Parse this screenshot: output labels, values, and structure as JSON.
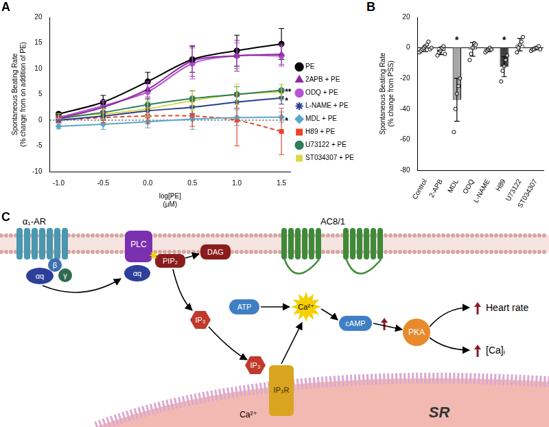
{
  "panels": [
    "A",
    "B",
    "C"
  ],
  "chart_data": [
    {
      "type": "line",
      "x_label": "log[PE] (μM)",
      "y_label": "Spontaneous Beating Rate (% change from on addition of PE)",
      "x": [
        -1,
        -0.5,
        0,
        0.5,
        1,
        1.5
      ],
      "xlim": [
        -1.1,
        1.6
      ],
      "xticks": [
        {
          "value": -1,
          "label": "-1.0"
        },
        {
          "value": -0.5,
          "label": "-0.5"
        },
        {
          "value": 0,
          "label": "0.0"
        },
        {
          "value": 0.5,
          "label": "0.5"
        },
        {
          "value": 1,
          "label": "1.0"
        },
        {
          "value": 1.5,
          "label": "1.5"
        }
      ],
      "ylim": [
        -10,
        20
      ],
      "yticks": [
        -10,
        -5,
        0,
        5,
        10,
        15,
        20
      ],
      "grid": false,
      "legend": "right",
      "reference_line": {
        "y": 0,
        "line_style": "dotted"
      },
      "series": [
        {
          "name": "PE",
          "color": "#000000",
          "marker": "circle",
          "line_style": "solid",
          "values": [
            1.2,
            3.5,
            7.5,
            11.8,
            13.5,
            14.8
          ],
          "errors": [
            0.3,
            1.3,
            1.8,
            2.5,
            3,
            3
          ]
        },
        {
          "name": "2APB + PE",
          "color": "#8e2c9e",
          "marker": "triangle",
          "line_style": "solid",
          "values": [
            0.3,
            2.5,
            6,
            11.5,
            12.5,
            12.8
          ],
          "errors": [
            0.5,
            1,
            1.5,
            3,
            3,
            2
          ]
        },
        {
          "name": "ODQ + PE",
          "color": "#b554d6",
          "marker": "circle",
          "line_style": "solid",
          "values": [
            0.5,
            2.8,
            5.5,
            11,
            12.5,
            12.5
          ],
          "errors": [
            0.5,
            1,
            1.5,
            3,
            2.5,
            2
          ]
        },
        {
          "name": "L-NAME + PE",
          "color": "#2c3e8c",
          "marker": "star",
          "line_style": "solid",
          "values": [
            0,
            0.8,
            1.8,
            2.5,
            3.5,
            4.3
          ],
          "errors": [
            0.4,
            0.8,
            1,
            1.2,
            1.2,
            1.2
          ]
        },
        {
          "name": "MDL + PE",
          "color": "#5aa7c9",
          "marker": "diamond",
          "line_style": "solid",
          "values": [
            -1.2,
            -0.8,
            -0.3,
            0.2,
            0.5,
            0.6
          ],
          "errors": [
            0.5,
            1,
            1.2,
            2,
            1.5,
            1
          ]
        },
        {
          "name": "H89 + PE",
          "color": "#e8452c",
          "marker": "square",
          "line_style": "dashed",
          "values": [
            0,
            0.5,
            0.8,
            0.8,
            0,
            -2.2
          ],
          "errors": [
            0.5,
            1,
            1.5,
            2,
            5,
            4.5
          ]
        },
        {
          "name": "U73122 + PE",
          "color": "#2e7d5b",
          "marker": "circle",
          "line_style": "solid",
          "values": [
            0.3,
            1.5,
            3,
            4.2,
            5,
            5.8
          ],
          "errors": [
            0.5,
            1,
            1.2,
            1.5,
            1.5,
            1.2
          ]
        },
        {
          "name": "ST034307 + PE",
          "color": "#d8d848",
          "marker": "square",
          "line_style": "solid",
          "values": [
            0.8,
            1.2,
            2.2,
            3.8,
            5,
            5.5
          ],
          "errors": [
            0.5,
            1,
            1.5,
            2,
            2,
            1.5
          ]
        }
      ],
      "annotations": [
        {
          "text": "**",
          "x": 1.5,
          "y": 5.8
        },
        {
          "text": "*",
          "x": 1.5,
          "y": 4.1
        },
        {
          "text": "*",
          "x": 1.5,
          "y": 0.2
        }
      ]
    },
    {
      "type": "bar",
      "y_label": "Spontaneous Beating Rate (% change from PSS)",
      "categories": [
        "Control",
        "2-APB",
        "MDL",
        "ODQ",
        "L-NAME",
        "H89",
        "U73122",
        "ST034307"
      ],
      "values": [
        -0.5,
        -2,
        -34,
        -1,
        -1.4,
        -12.4,
        2,
        -0.6
      ],
      "errors": [
        2,
        2.5,
        14,
        4.5,
        1.2,
        6.5,
        4,
        0.8
      ],
      "points": [
        [
          -3,
          -2,
          -1,
          0,
          1,
          2,
          4,
          -1,
          0
        ],
        [
          -5,
          -3,
          -2,
          0,
          1,
          -4
        ],
        [
          -55,
          -40,
          -30,
          -25,
          -20
        ],
        [
          -8,
          -4,
          0,
          3,
          2
        ],
        [
          -3,
          -2,
          -1,
          0,
          -1
        ],
        [
          -22,
          -15,
          -12,
          -8,
          -5
        ],
        [
          -3,
          0,
          2,
          4,
          7
        ],
        [
          -2,
          -1,
          -1,
          0,
          0,
          1,
          -1
        ]
      ],
      "colors": [
        "#ffffff",
        "#ffffff",
        "#a6a6a6",
        "#ffffff",
        "#ffffff",
        "#404040",
        "#ffffff",
        "#ffffff"
      ],
      "ylim": [
        -80,
        20
      ],
      "yticks": [
        -80,
        -60,
        -40,
        -20,
        0,
        20
      ],
      "grid": false,
      "reference_line": {
        "y": 0,
        "line_style": "solid"
      },
      "annotations": [
        {
          "text": "*",
          "category": "MDL",
          "y": 6
        },
        {
          "text": "*",
          "category": "H89",
          "y": 6
        }
      ]
    }
  ],
  "diagram": {
    "labels": {
      "receptor": "α₁-AR",
      "beta": "β",
      "gamma": "γ",
      "alpha1": "αq",
      "alpha2": "αq",
      "plc": "PLC",
      "pip2": "PIP₂",
      "dag": "DAG",
      "ac": "AC8/1",
      "atp": "ATP",
      "ca_burst": "Ca²⁺",
      "camp": "cAMP",
      "pka": "PKA",
      "heart": "Heart rate",
      "cai": "[Ca]ᵢ",
      "ip3_a": "IP₃",
      "ip3_b": "IP₃",
      "ip3r": "IP₃R",
      "ca_sr": "Ca²⁺",
      "sr": "SR"
    }
  }
}
